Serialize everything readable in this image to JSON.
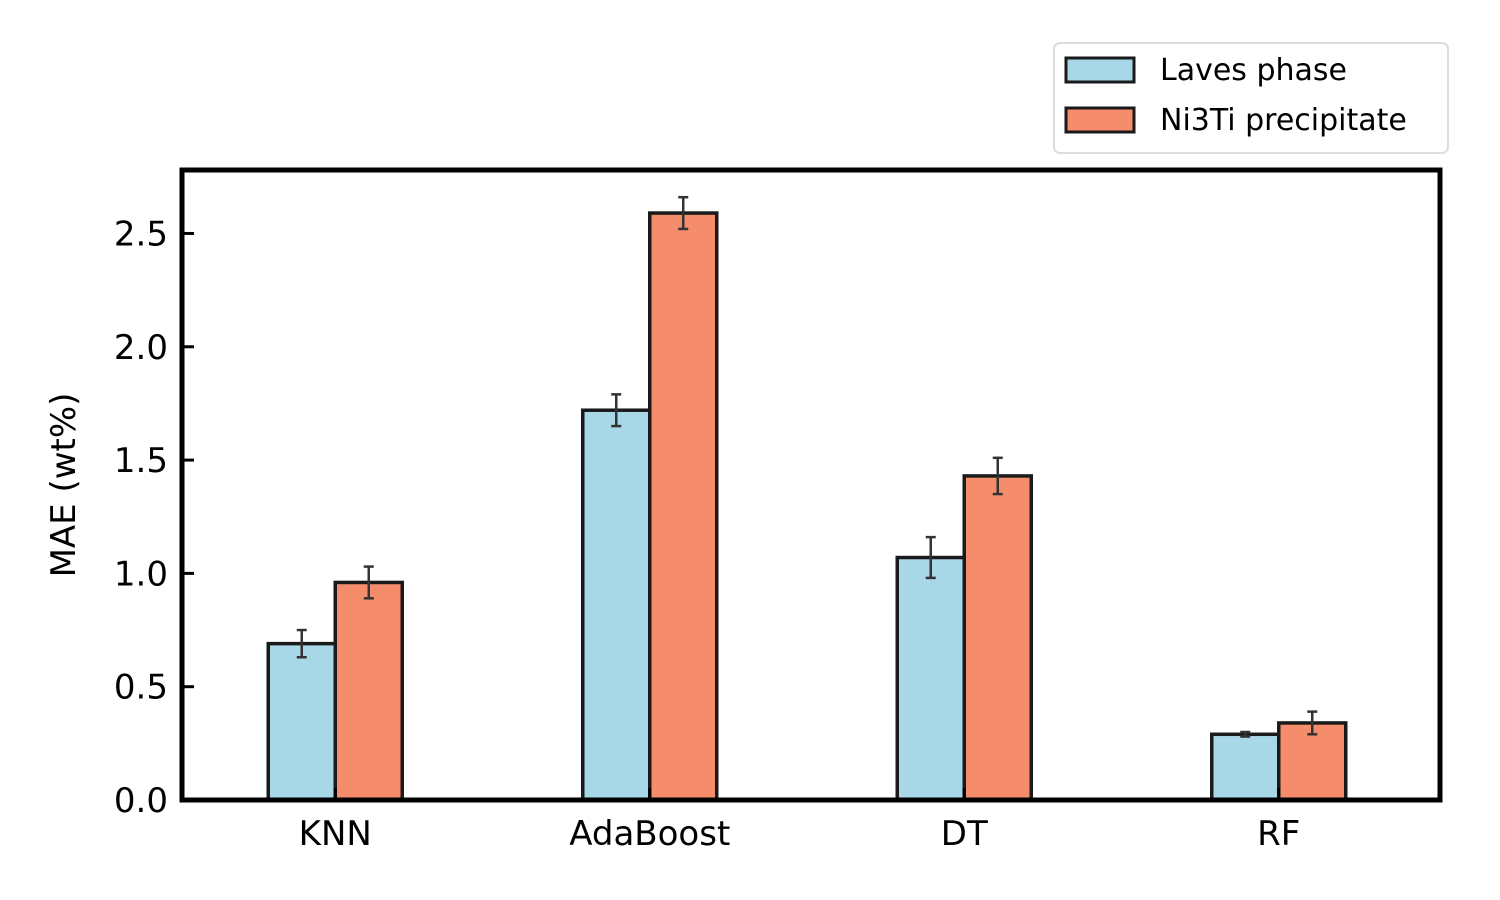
{
  "chart_data": {
    "type": "bar",
    "categories": [
      "KNN",
      "AdaBoost",
      "DT",
      "RF"
    ],
    "series": [
      {
        "name": "Laves phase",
        "color": "#A8D8E8",
        "values": [
          0.69,
          1.72,
          1.07,
          0.29
        ],
        "errors": [
          0.06,
          0.07,
          0.09,
          0.01
        ]
      },
      {
        "name": "Ni3Ti precipitate",
        "color": "#F58C6C",
        "values": [
          0.96,
          2.59,
          1.43,
          0.34
        ],
        "errors": [
          0.07,
          0.07,
          0.08,
          0.05
        ]
      }
    ],
    "xlabel": "",
    "ylabel": "MAE (wt%)",
    "ylim": [
      0,
      2.78
    ],
    "yticks": [
      0.0,
      0.5,
      1.0,
      1.5,
      2.0,
      2.5
    ],
    "ytick_labels": [
      "0.0",
      "0.5",
      "1.0",
      "1.5",
      "2.0",
      "2.5"
    ],
    "grid": false,
    "legend_position": "top-right, outside above plot",
    "colors": {
      "edge": "#1a1a1a",
      "errorbar": "#333333",
      "axes": "#000000"
    }
  }
}
